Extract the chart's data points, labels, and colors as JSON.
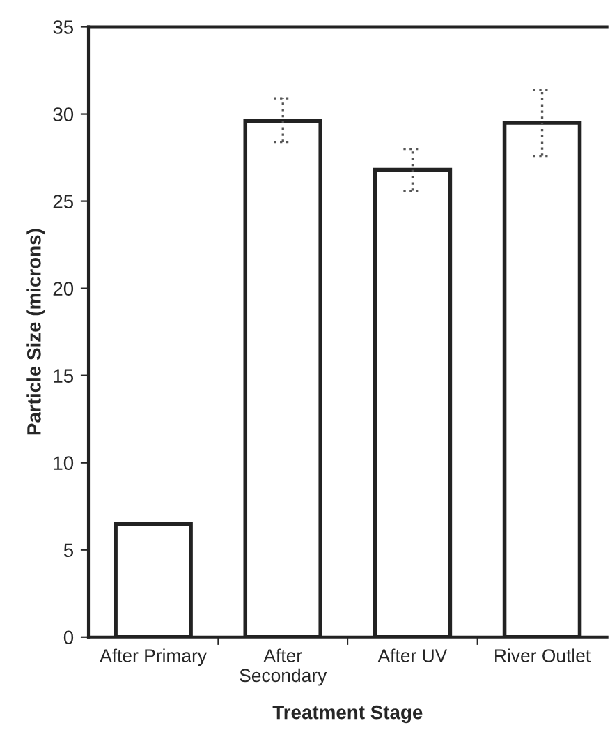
{
  "chart_data": {
    "type": "bar",
    "xlabel": "Treatment Stage",
    "ylabel": "Particle Size (microns)",
    "categories": [
      "After Primary",
      "After\nSecondary",
      "After UV",
      "River Outlet"
    ],
    "values": [
      6.5,
      29.6,
      26.8,
      29.5
    ],
    "errors": [
      null,
      [
        28.4,
        30.9
      ],
      [
        25.6,
        28.0
      ],
      [
        27.6,
        31.4
      ]
    ],
    "color": "#ffffff",
    "ylim": [
      0,
      35
    ],
    "yticks": [
      0,
      5,
      10,
      15,
      20,
      25,
      30,
      35
    ],
    "grid": false,
    "legend": false
  }
}
